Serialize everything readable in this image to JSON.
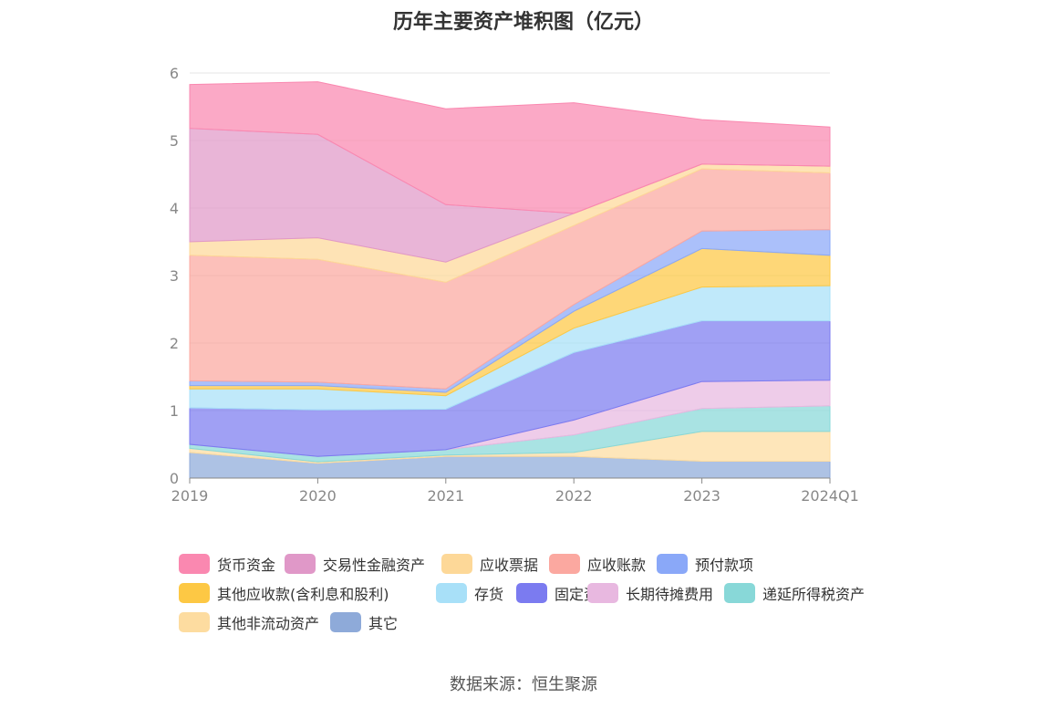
{
  "chart_data": {
    "type": "area",
    "stacked": true,
    "title": "历年主要资产堆积图（亿元）",
    "categories": [
      "2019",
      "2020",
      "2021",
      "2022",
      "2023",
      "2024Q1"
    ],
    "ylim": [
      0,
      6
    ],
    "yticks": [
      "0",
      "1",
      "2",
      "3",
      "4",
      "5",
      "6"
    ],
    "grid": "horizontal",
    "legend_position": "bottom",
    "series": [
      {
        "name": "其它",
        "color": "#8eaad9",
        "values": [
          0.38,
          0.22,
          0.32,
          0.32,
          0.25,
          0.25
        ]
      },
      {
        "name": "其他非流动资产",
        "color": "#fddca0",
        "values": [
          0.06,
          0.02,
          0.02,
          0.06,
          0.44,
          0.44
        ]
      },
      {
        "name": "递延所得税资产",
        "color": "#88d8d8",
        "values": [
          0.06,
          0.08,
          0.08,
          0.26,
          0.34,
          0.38
        ]
      },
      {
        "name": "长期待摊费用",
        "color": "#e8b8e0",
        "values": [
          0.0,
          0.0,
          0.0,
          0.22,
          0.4,
          0.38
        ]
      },
      {
        "name": "固定资产",
        "color": "#7b7bf0",
        "values": [
          0.54,
          0.69,
          0.6,
          1.0,
          0.9,
          0.88
        ]
      },
      {
        "name": "存货",
        "color": "#a8e0f8",
        "values": [
          0.28,
          0.31,
          0.2,
          0.36,
          0.5,
          0.52
        ]
      },
      {
        "name": "其他应收款(含利息和股利)",
        "color": "#fdc844",
        "values": [
          0.05,
          0.05,
          0.05,
          0.25,
          0.57,
          0.45
        ]
      },
      {
        "name": "预付款项",
        "color": "#8aa8f8",
        "values": [
          0.07,
          0.05,
          0.05,
          0.1,
          0.26,
          0.38
        ]
      },
      {
        "name": "应收账款",
        "color": "#fba8a0",
        "values": [
          1.86,
          1.82,
          1.58,
          1.17,
          0.92,
          0.84
        ]
      },
      {
        "name": "应收票据",
        "color": "#fdd898",
        "values": [
          0.2,
          0.32,
          0.3,
          0.18,
          0.07,
          0.1
        ]
      },
      {
        "name": "交易性金融资产",
        "color": "#e098c8",
        "values": [
          1.68,
          1.53,
          0.85,
          0.0,
          0.0,
          0.0
        ]
      },
      {
        "name": "货币资金",
        "color": "#fa88b0",
        "values": [
          0.65,
          0.78,
          1.42,
          1.64,
          0.66,
          0.58
        ]
      }
    ]
  },
  "legend": [
    {
      "name": "货币资金",
      "color": "#fa88b0"
    },
    {
      "name": "交易性金融资产",
      "color": "#e098c8"
    },
    {
      "name": "应收票据",
      "color": "#fdd898"
    },
    {
      "name": "应收账款",
      "color": "#fba8a0"
    },
    {
      "name": "预付款项",
      "color": "#8aa8f8"
    },
    {
      "name": "其他应收款(含利息和股利)",
      "color": "#fdc844"
    },
    {
      "name": "存货",
      "color": "#a8e0f8"
    },
    {
      "name": "固定资产",
      "color": "#7b7bf0"
    },
    {
      "name": "长期待摊费用",
      "color": "#e8b8e0"
    },
    {
      "name": "递延所得税资产",
      "color": "#88d8d8"
    },
    {
      "name": "其他非流动资产",
      "color": "#fddca0"
    },
    {
      "name": "其它",
      "color": "#8eaad9"
    }
  ],
  "source": "数据来源：恒生聚源"
}
